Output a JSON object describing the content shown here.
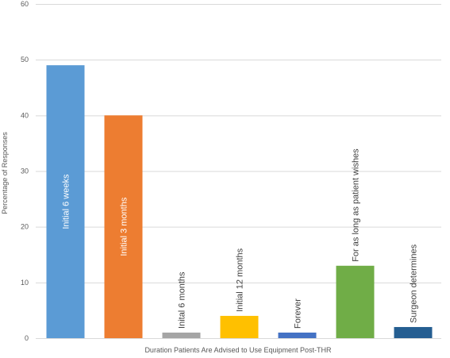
{
  "chart_data": {
    "type": "bar",
    "title": "",
    "xlabel": "Duration Patients Are Advised to Use Equipment Post-THR",
    "ylabel": "Percentage of Responses",
    "ylim": [
      0,
      60
    ],
    "yticks": [
      0,
      10,
      20,
      30,
      40,
      50,
      60
    ],
    "grid": true,
    "legend": "none",
    "categories": [
      "Initial 6 weeks",
      "Initial 3 months",
      "Inital 6 months",
      "Initial 12 months",
      "Forever",
      "For as long as patient wishes",
      "Surgeon determines"
    ],
    "values": [
      49,
      40,
      1,
      4,
      1,
      13,
      2
    ],
    "colors": [
      "#5b9bd5",
      "#ed7d31",
      "#a5a5a5",
      "#ffc000",
      "#4472c4",
      "#70ad47",
      "#255e91"
    ],
    "label_inside": [
      true,
      true,
      false,
      false,
      false,
      false,
      false
    ],
    "label_colors": [
      "#ffffff",
      "#ffffff",
      "#404040",
      "#404040",
      "#404040",
      "#404040",
      "#404040"
    ]
  }
}
